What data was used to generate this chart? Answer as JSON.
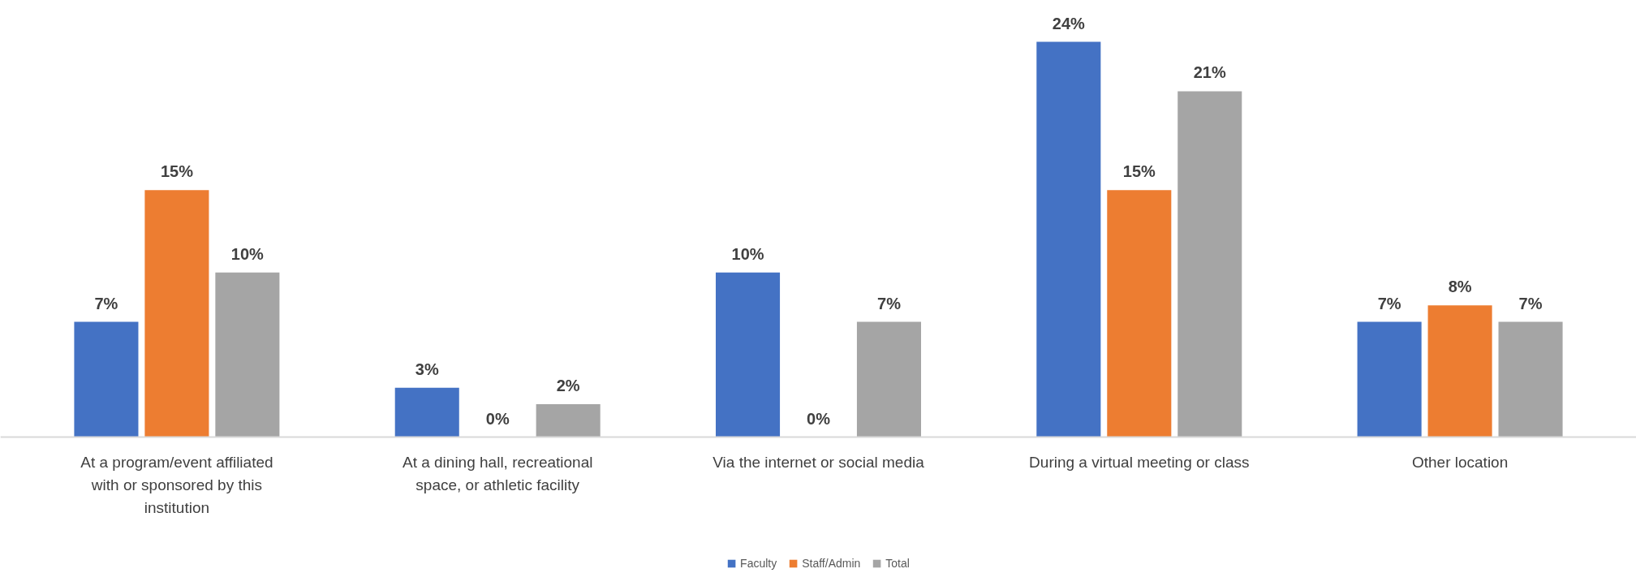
{
  "chart_data": {
    "type": "bar",
    "categories": [
      "At a program/event affiliated with or sponsored by this institution",
      "At a dining hall, recreational space, or athletic facility",
      "Via the internet or social media",
      "During a virtual meeting or class",
      "Other location"
    ],
    "series": [
      {
        "name": "Faculty",
        "color": "#4472c4",
        "values": [
          7,
          3,
          10,
          24,
          7
        ],
        "value_labels": [
          "7%",
          "3%",
          "10%",
          "24%",
          "7%"
        ]
      },
      {
        "name": "Staff/Admin",
        "color": "#ed7d31",
        "values": [
          15,
          0,
          0,
          15,
          8
        ],
        "value_labels": [
          "15%",
          "0%",
          "0%",
          "15%",
          "8%"
        ]
      },
      {
        "name": "Total",
        "color": "#a5a5a5",
        "values": [
          10,
          2,
          7,
          21,
          7
        ],
        "value_labels": [
          "10%",
          "2%",
          "7%",
          "21%",
          "7%"
        ]
      }
    ],
    "legend": "bottom",
    "grid": false
  }
}
